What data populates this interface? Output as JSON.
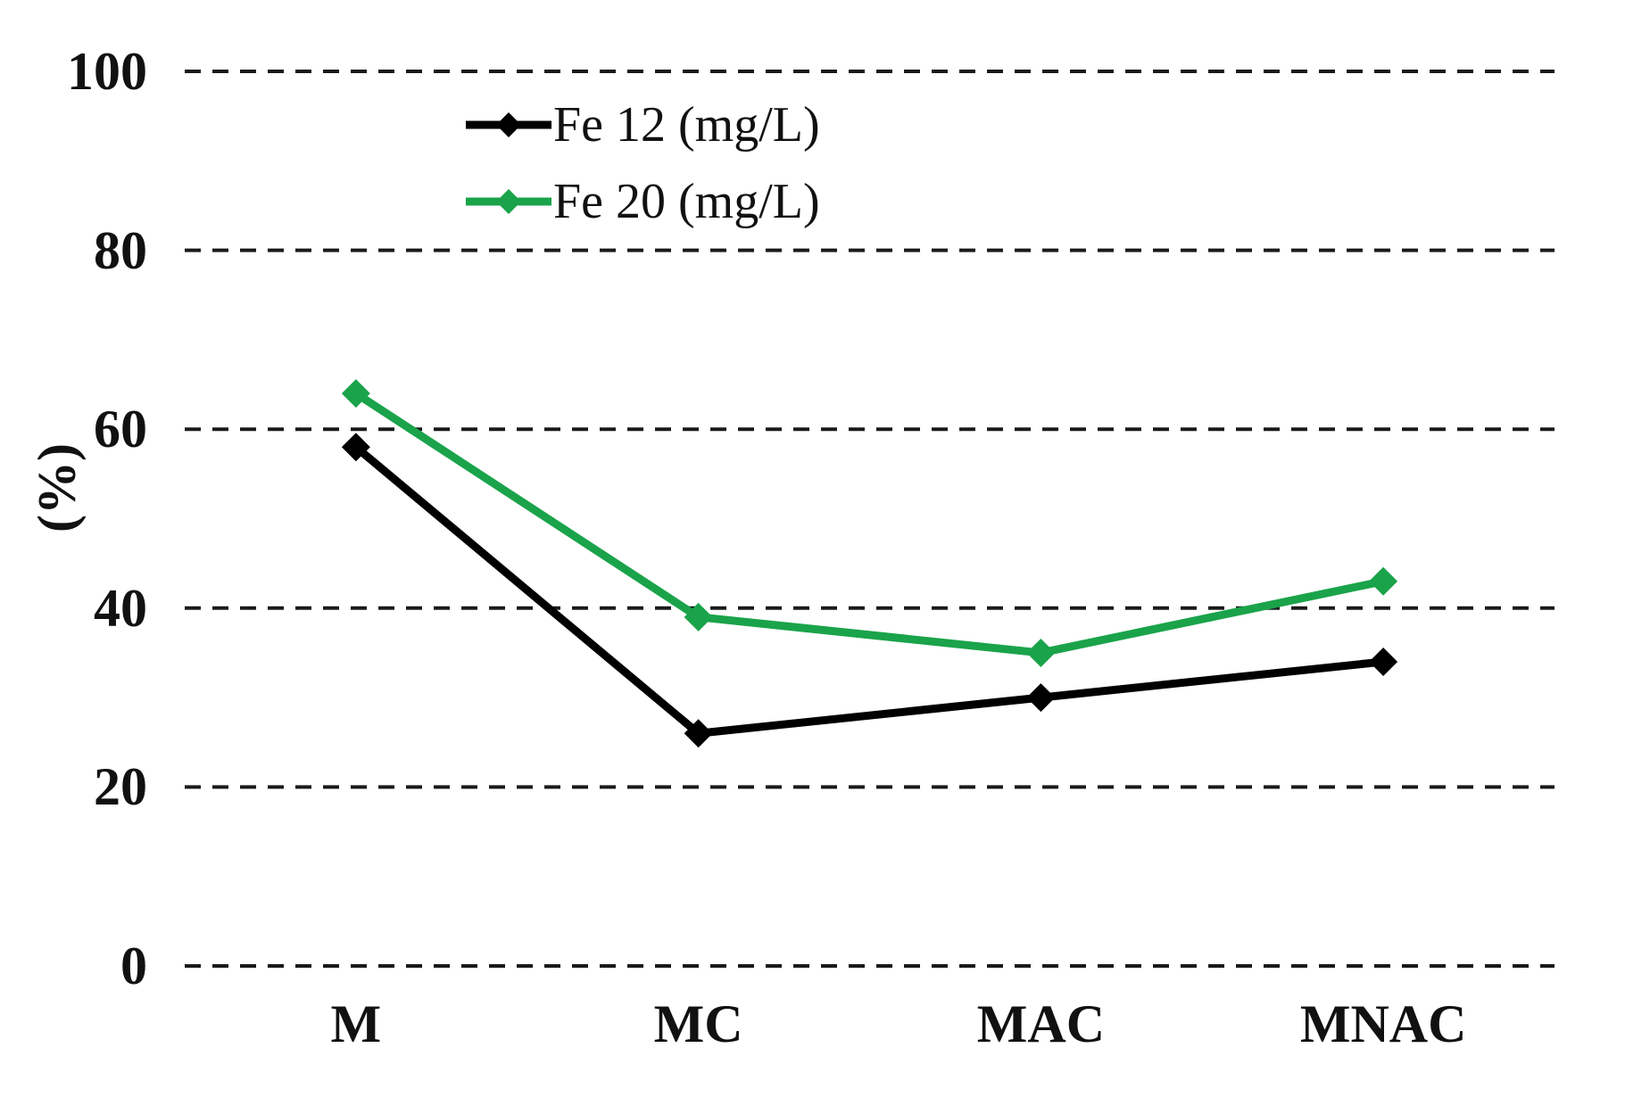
{
  "chart_data": {
    "type": "line",
    "categories": [
      "M",
      "MC",
      "MAC",
      "MNAC"
    ],
    "series": [
      {
        "name": "Fe 12 (mg/L)",
        "color": "#000000",
        "marker": "diamond",
        "values": [
          58,
          26,
          30,
          34
        ]
      },
      {
        "name": "Fe 20 (mg/L)",
        "color": "#1AA34A",
        "marker": "diamond",
        "values": [
          64,
          39,
          35,
          43
        ]
      }
    ],
    "title": "",
    "xlabel": "",
    "ylabel": "(%)",
    "ylim": [
      0,
      100
    ],
    "yticks": [
      0,
      20,
      40,
      60,
      80,
      100
    ],
    "grid": {
      "horizontal": true,
      "style": "dashed",
      "color": "#1a1a1a"
    },
    "legend_position": "inside-top-left"
  },
  "colors": {
    "background": "#ffffff",
    "grid": "#1a1a1a",
    "text": "#111111"
  }
}
